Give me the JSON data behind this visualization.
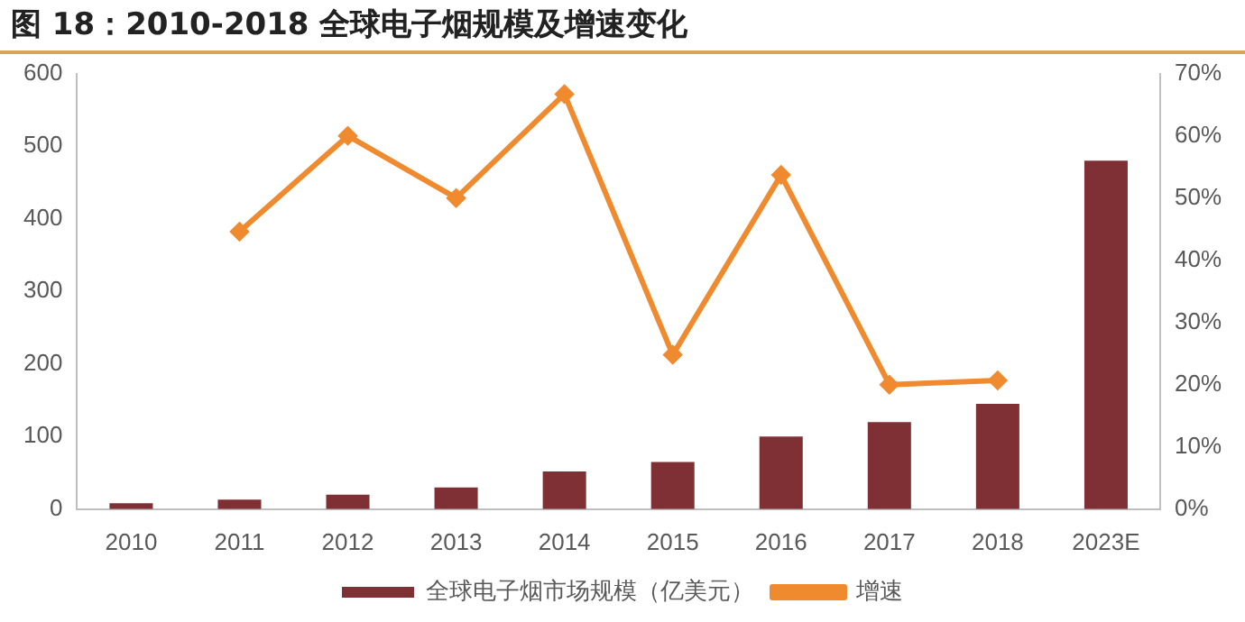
{
  "chart_data": {
    "type": "bar",
    "title": "图 18：2010-2018 全球电子烟规模及增速变化",
    "categories": [
      "2010",
      "2011",
      "2012",
      "2013",
      "2014",
      "2015",
      "2016",
      "2017",
      "2018",
      "2023E"
    ],
    "series": [
      {
        "name": "全球电子烟市场规模（亿美元）",
        "color": "#7f3034",
        "values": [
          8,
          13,
          20,
          30,
          52,
          65,
          100,
          120,
          145,
          480
        ]
      },
      {
        "name": "增速",
        "type": "line",
        "axis": "y2",
        "color": "#f08a2e",
        "marker": "diamond",
        "values": [
          null,
          44.6,
          60,
          50,
          66.7,
          24.8,
          53.7,
          20,
          20.7,
          null
        ]
      }
    ],
    "ylim": [
      0,
      600
    ],
    "yticks": [
      0,
      100,
      200,
      300,
      400,
      500,
      600
    ],
    "y2lim": [
      0,
      70
    ],
    "y2ticks": [
      {
        "value": 0,
        "label": "0%"
      },
      {
        "value": 10,
        "label": "10%"
      },
      {
        "value": 20,
        "label": "20%"
      },
      {
        "value": 30,
        "label": "30%"
      },
      {
        "value": 40,
        "label": "40%"
      },
      {
        "value": 50,
        "label": "50%"
      },
      {
        "value": 60,
        "label": "60%"
      },
      {
        "value": 70,
        "label": "70%"
      }
    ],
    "grid": false,
    "legend": "bottom"
  }
}
